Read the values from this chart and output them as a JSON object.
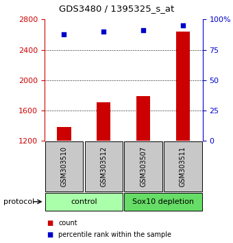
{
  "title": "GDS3480 / 1395325_s_at",
  "samples": [
    "GSM303510",
    "GSM303512",
    "GSM303507",
    "GSM303511"
  ],
  "bar_values": [
    1380,
    1710,
    1790,
    2640
  ],
  "percentile_values": [
    88,
    90,
    91,
    95
  ],
  "bar_color": "#cc0000",
  "dot_color": "#0000cc",
  "ylim_left": [
    1200,
    2800
  ],
  "ylim_right": [
    0,
    100
  ],
  "yticks_left": [
    1200,
    1600,
    2000,
    2400,
    2800
  ],
  "yticks_right": [
    0,
    25,
    50,
    75,
    100
  ],
  "grid_values": [
    1600,
    2000,
    2400
  ],
  "groups": [
    {
      "label": "control",
      "indices": [
        0,
        1
      ],
      "color": "#aaffaa"
    },
    {
      "label": "Sox10 depletion",
      "indices": [
        2,
        3
      ],
      "color": "#66dd66"
    }
  ],
  "protocol_label": "protocol",
  "legend_count_label": "count",
  "legend_pct_label": "percentile rank within the sample",
  "bar_bottom": 1200,
  "box_color": "#c8c8c8",
  "bar_width": 0.35
}
